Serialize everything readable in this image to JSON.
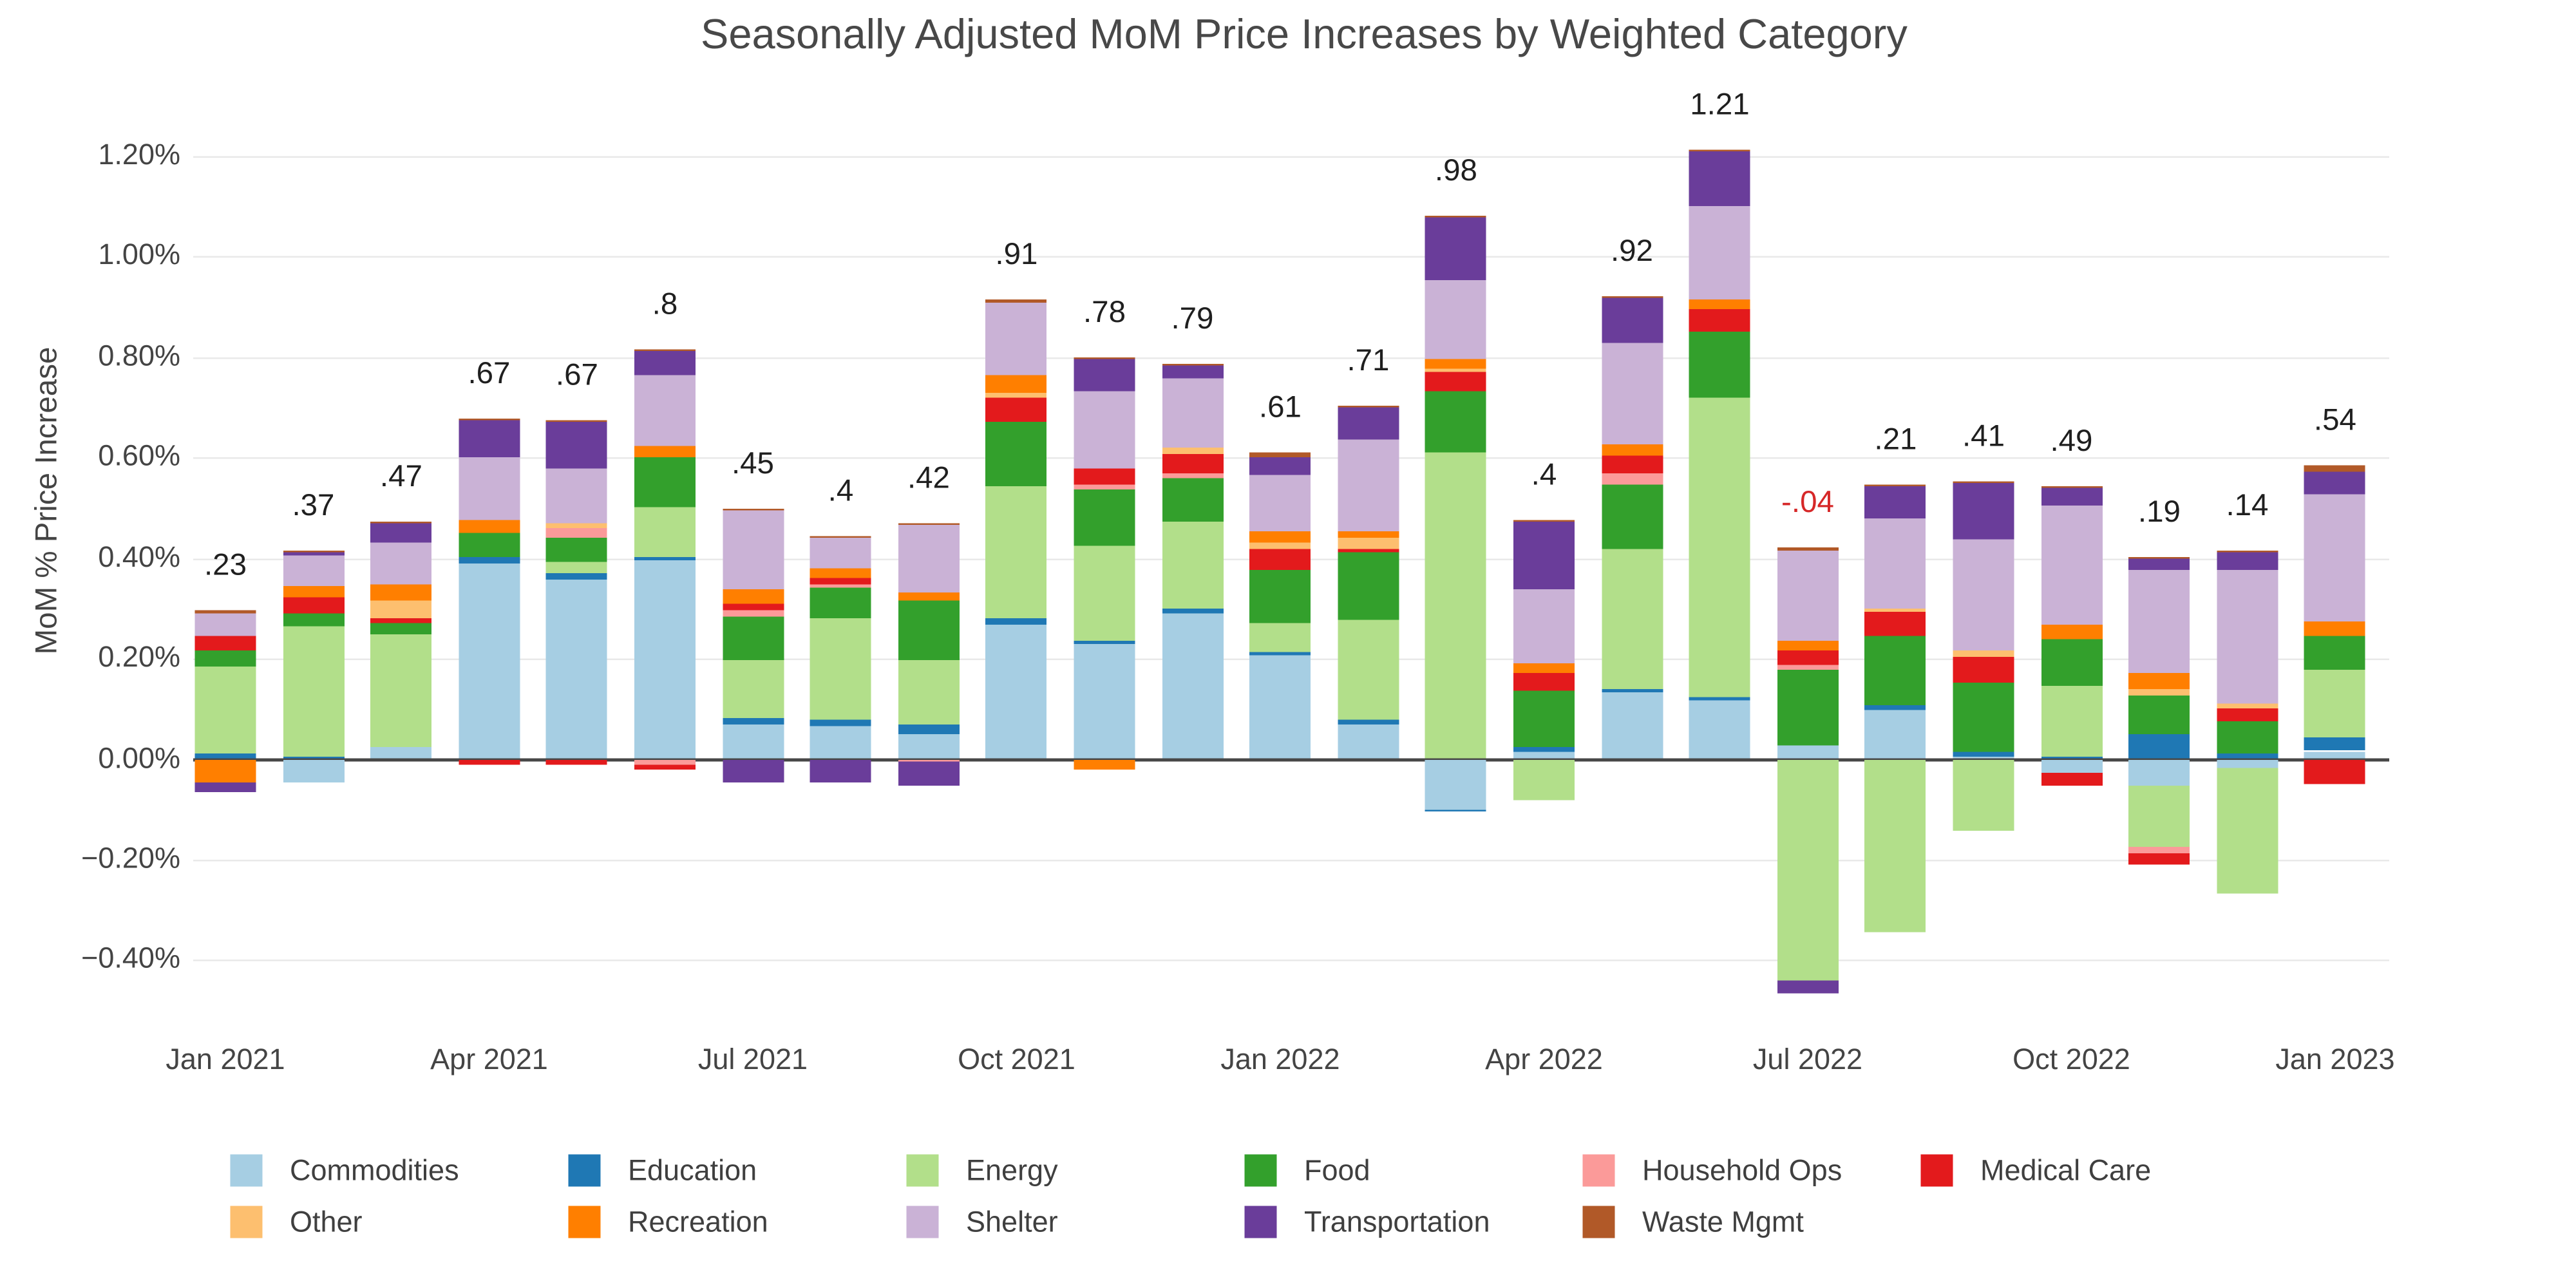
{
  "title": "Seasonally Adjusted MoM Price Increases by Weighted Category",
  "y_axis": {
    "label": "MoM % Price Increase"
  },
  "styles": {
    "grid_color": "#e9e9e9",
    "zero_line_color": "#474747",
    "axis_text_color": "#444444",
    "bar_label_color": "#1f1f1f",
    "negative_label_color": "#d62728",
    "background": "#ffffff"
  },
  "legend_rows": [
    [
      "Commodities",
      "Education",
      "Energy",
      "Food",
      "Household Ops",
      "Medical Care"
    ],
    [
      "Other",
      "Recreation",
      "Shelter",
      "Transportation",
      "Waste Mgmt"
    ]
  ],
  "chart_data": {
    "type": "bar",
    "stacked": true,
    "title": "Seasonally Adjusted MoM Price Increases by Weighted Category",
    "xlabel": "",
    "ylabel": "MoM % Price Increase",
    "grid": true,
    "legend_position": "bottom",
    "ylim": [
      -0.52,
      1.32
    ],
    "y_ticks": [
      {
        "value": 1.2,
        "label": "1.20%"
      },
      {
        "value": 1.0,
        "label": "1.00%"
      },
      {
        "value": 0.8,
        "label": "0.80%"
      },
      {
        "value": 0.6,
        "label": "0.60%"
      },
      {
        "value": 0.4,
        "label": "0.40%"
      },
      {
        "value": 0.2,
        "label": "0.20%"
      },
      {
        "value": 0.0,
        "label": "0.00%"
      },
      {
        "value": -0.2,
        "label": "−0.20%"
      },
      {
        "value": -0.4,
        "label": "−0.40%"
      }
    ],
    "x": [
      "Jan 2021",
      "Feb 2021",
      "Mar 2021",
      "Apr 2021",
      "May 2021",
      "Jun 2021",
      "Jul 2021",
      "Aug 2021",
      "Sep 2021",
      "Oct 2021",
      "Nov 2021",
      "Dec 2021",
      "Jan 2022",
      "Feb 2022",
      "Mar 2022",
      "Apr 2022",
      "May 2022",
      "Jun 2022",
      "Jul 2022",
      "Aug 2022",
      "Sep 2022",
      "Oct 2022",
      "Nov 2022",
      "Dec 2022",
      "Jan 2023"
    ],
    "x_tick_indices": [
      0,
      3,
      6,
      9,
      12,
      15,
      18,
      21,
      24
    ],
    "bar_total_labels": [
      ".23",
      ".37",
      ".47",
      ".67",
      ".67",
      ".8",
      ".45",
      ".4",
      ".42",
      ".91",
      ".78",
      ".79",
      ".61",
      ".71",
      ".98",
      ".4",
      ".92",
      "1.21",
      "-.04",
      ".21",
      ".41",
      ".49",
      ".19",
      ".14",
      ".54"
    ],
    "series": [
      {
        "name": "Commodities",
        "color": "#a6cee3",
        "values": [
          0,
          -0.045,
          0.023,
          0.39,
          0.357,
          0.395,
          0.07,
          0.066,
          0.049,
          0.267,
          0.229,
          0.29,
          0.206,
          0.07,
          -0.1,
          0.015,
          0.133,
          0.116,
          0.028,
          0.098,
          0.005,
          -0.027,
          -0.053,
          -0.019,
          0.016
        ]
      },
      {
        "name": "Education",
        "color": "#1f78b4",
        "values": [
          0.01,
          0.005,
          0,
          0.012,
          0.014,
          0.008,
          0.012,
          0.014,
          0.021,
          0.012,
          0.008,
          0.008,
          0.006,
          0.008,
          -0.005,
          0.008,
          0.007,
          0.008,
          0,
          0.008,
          0.01,
          0.005,
          0.049,
          0.012,
          0.027
        ]
      },
      {
        "name": "Energy",
        "color": "#b2df8a",
        "values": [
          0.175,
          0.26,
          0.225,
          0,
          0.02,
          0.099,
          0.116,
          0.2,
          0.128,
          0.264,
          0.186,
          0.174,
          0.06,
          0.198,
          0.61,
          -0.081,
          0.279,
          0.596,
          -0.44,
          -0.344,
          -0.143,
          0.14,
          -0.121,
          -0.249,
          0.136
        ]
      },
      {
        "name": "Food",
        "color": "#33a02c",
        "values": [
          0.03,
          0.025,
          0.022,
          0.048,
          0.05,
          0.099,
          0.086,
          0.06,
          0.116,
          0.128,
          0.112,
          0.087,
          0.105,
          0.134,
          0.122,
          0.112,
          0.128,
          0.132,
          0.15,
          0.14,
          0.137,
          0.093,
          0.076,
          0.063,
          0.065
        ]
      },
      {
        "name": "Household Ops",
        "color": "#fb9a99",
        "values": [
          0,
          0,
          0,
          0,
          0.02,
          -0.01,
          0.012,
          0.007,
          -0.005,
          0,
          0.012,
          0.009,
          0,
          0,
          0,
          0,
          0.023,
          0,
          0.01,
          0,
          0,
          0,
          -0.012,
          0,
          0
        ]
      },
      {
        "name": "Medical Care",
        "color": "#e31a1c",
        "values": [
          0.03,
          0.033,
          0.01,
          -0.01,
          -0.01,
          -0.01,
          0.012,
          0.014,
          0,
          0.047,
          0.031,
          0.04,
          0.042,
          0.009,
          0.037,
          0.037,
          0.035,
          0.044,
          0.028,
          0.047,
          0.051,
          -0.027,
          -0.023,
          0.027,
          -0.05
        ]
      },
      {
        "name": "Other",
        "color": "#fdbf6f",
        "values": [
          0,
          0,
          0.035,
          0,
          0.008,
          0,
          0,
          0,
          0,
          0.012,
          0,
          0.012,
          0.012,
          0.02,
          0.009,
          0,
          0,
          0,
          0,
          0.006,
          0.012,
          0,
          0.015,
          0.008,
          0
        ]
      },
      {
        "name": "Recreation",
        "color": "#ff7f00",
        "values": [
          -0.045,
          0.022,
          0.032,
          0.027,
          0,
          0.023,
          0.03,
          0.017,
          0.016,
          0.035,
          -0.02,
          0,
          0.023,
          0.015,
          0.017,
          0.017,
          0.02,
          0.017,
          0.019,
          0,
          0,
          0.03,
          0.031,
          0,
          0.031
        ]
      },
      {
        "name": "Shelter",
        "color": "#cab2d6",
        "values": [
          0.045,
          0.06,
          0.083,
          0.123,
          0.108,
          0.14,
          0.156,
          0.065,
          0.135,
          0.143,
          0.155,
          0.137,
          0.11,
          0.183,
          0.159,
          0.148,
          0.203,
          0.186,
          0.18,
          0.18,
          0.221,
          0.237,
          0.206,
          0.265,
          0.252
        ]
      },
      {
        "name": "Transportation",
        "color": "#6a3d9a",
        "values": [
          -0.02,
          0.007,
          0.038,
          0.075,
          0.095,
          0.047,
          -0.047,
          -0.047,
          -0.047,
          0,
          0.063,
          0.026,
          0.038,
          0.062,
          0.123,
          0.135,
          0.091,
          0.11,
          -0.025,
          0.065,
          0.112,
          0.035,
          0.023,
          0.037,
          0.044
        ]
      },
      {
        "name": "Waste Mgmt",
        "color": "#b15928",
        "values": [
          0.005,
          0.003,
          0.003,
          0.002,
          0.003,
          0.003,
          0.003,
          0.002,
          0.005,
          0.005,
          0.002,
          0.003,
          0.008,
          0.003,
          0.003,
          0.003,
          0.003,
          0.003,
          0.005,
          0.003,
          0.003,
          0.003,
          0.003,
          0.003,
          0.014
        ]
      }
    ]
  }
}
